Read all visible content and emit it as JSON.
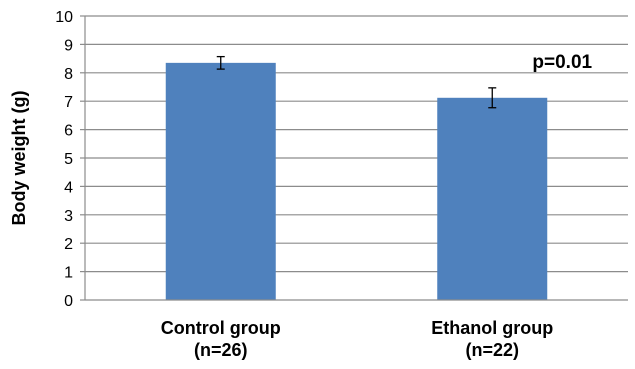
{
  "chart_data": {
    "type": "bar",
    "title": "",
    "xlabel": "",
    "ylabel": "Body weight (g)",
    "ylim": [
      0,
      10
    ],
    "yticks": [
      0,
      1,
      2,
      3,
      4,
      5,
      6,
      7,
      8,
      9,
      10
    ],
    "grid": true,
    "legend": "none",
    "categories": [
      [
        "Control group",
        "(n=26)"
      ],
      [
        "Ethanol group",
        "(n=22)"
      ]
    ],
    "series": [
      {
        "values": [
          8.35,
          7.12
        ],
        "errors": [
          0.22,
          0.35
        ],
        "color": "#4F81BD"
      }
    ],
    "annotations": [
      {
        "text": "p=0.01",
        "anchor": "above-right-of-category-2"
      }
    ],
    "colors": {
      "bar": "#4F81BD",
      "grid": "#8c8c8c",
      "axis": "#8c8c8c"
    }
  }
}
